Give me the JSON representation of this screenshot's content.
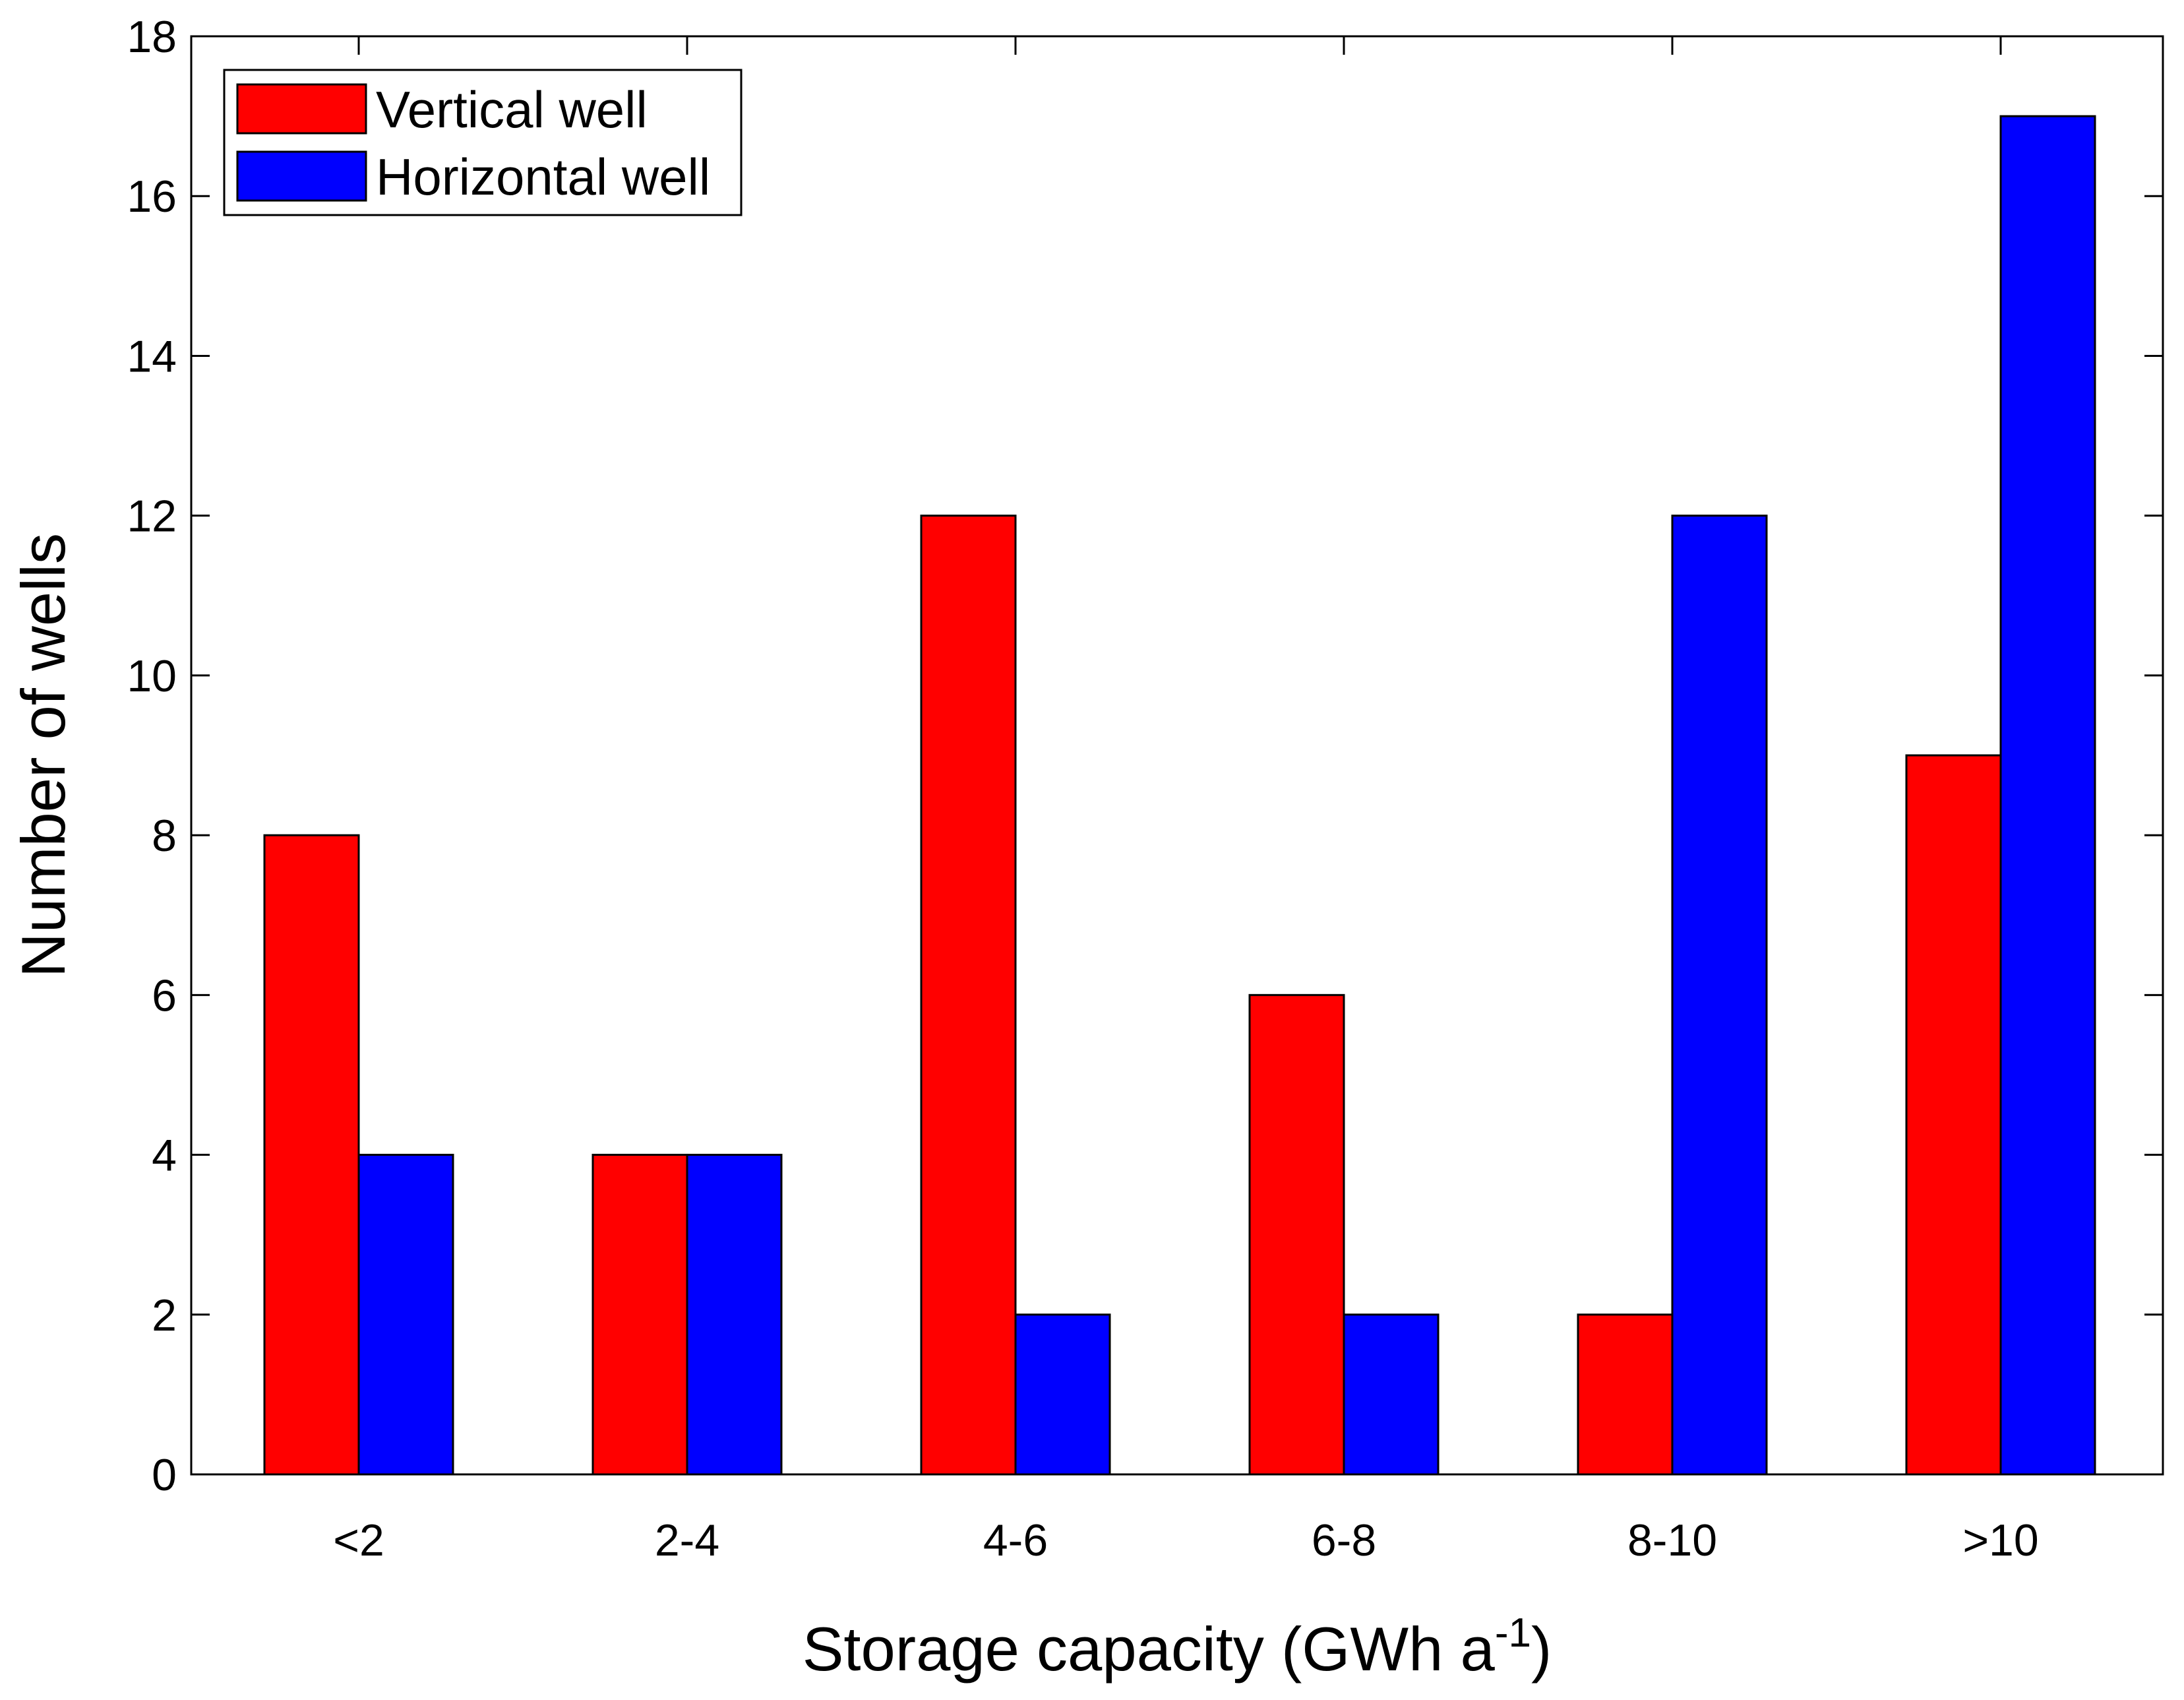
{
  "chart_data": {
    "type": "bar",
    "title": "",
    "xlabel": "Storage capacity (GWh a",
    "xlabel_superscript": "-1",
    "xlabel_suffix": ")",
    "ylabel": "Number of wells",
    "ylim": [
      0,
      18
    ],
    "yticks": [
      0,
      2,
      4,
      6,
      8,
      10,
      12,
      14,
      16,
      18
    ],
    "categories": [
      "<2",
      "2-4",
      "4-6",
      "6-8",
      "8-10",
      ">10"
    ],
    "series": [
      {
        "name": "Vertical well",
        "color": "#ff0000",
        "values": [
          8,
          4,
          12,
          6,
          2,
          9
        ]
      },
      {
        "name": "Horizontal well",
        "color": "#0000ff",
        "values": [
          4,
          4,
          2,
          2,
          12,
          17
        ]
      }
    ],
    "legend_position": "top-left",
    "grid": false
  }
}
